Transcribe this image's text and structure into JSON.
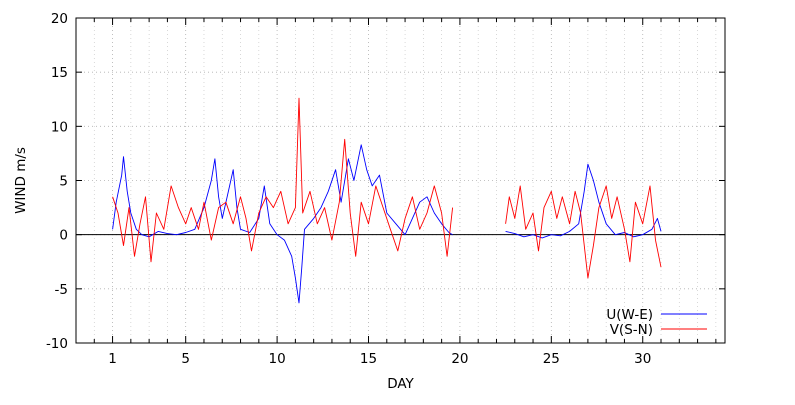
{
  "chart_data": {
    "type": "line",
    "title": "",
    "xlabel": "DAY",
    "ylabel": "WIND m/s",
    "xlim": [
      -1,
      34.5
    ],
    "ylim": [
      -10,
      20
    ],
    "x_ticks": [
      1,
      5,
      10,
      15,
      20,
      25,
      30
    ],
    "x_tick_labels": [
      "1",
      "5",
      "10",
      "15",
      "20",
      "25",
      "30"
    ],
    "x_minor_step": 1,
    "y_ticks": [
      -10,
      -5,
      0,
      5,
      10,
      15,
      20
    ],
    "y_tick_labels": [
      "-10",
      "-5",
      "0",
      "5",
      "10",
      "15",
      "20"
    ],
    "grid": true,
    "zero_line": true,
    "legend_position": "bottom-right",
    "series": [
      {
        "name": "U(W-E)",
        "color": "#0000ff",
        "segments": [
          [
            [
              1.0,
              0.5
            ],
            [
              1.2,
              3.0
            ],
            [
              1.5,
              5.5
            ],
            [
              1.6,
              7.2
            ],
            [
              1.8,
              4.0
            ],
            [
              2.0,
              2.0
            ],
            [
              2.3,
              0.5
            ],
            [
              2.6,
              0.0
            ],
            [
              3.0,
              -0.2
            ],
            [
              3.5,
              0.3
            ],
            [
              4.0,
              0.1
            ],
            [
              4.5,
              0.0
            ],
            [
              5.0,
              0.2
            ],
            [
              5.5,
              0.5
            ],
            [
              6.0,
              2.5
            ],
            [
              6.4,
              5.0
            ],
            [
              6.6,
              7.0
            ],
            [
              6.8,
              3.5
            ],
            [
              7.0,
              1.5
            ],
            [
              7.4,
              4.5
            ],
            [
              7.6,
              6.0
            ],
            [
              7.8,
              2.5
            ],
            [
              8.0,
              0.5
            ],
            [
              8.5,
              0.2
            ],
            [
              9.0,
              1.5
            ],
            [
              9.3,
              4.5
            ],
            [
              9.6,
              1.0
            ],
            [
              10.0,
              0.0
            ],
            [
              10.4,
              -0.5
            ],
            [
              10.8,
              -2.0
            ],
            [
              11.0,
              -4.0
            ],
            [
              11.2,
              -6.3
            ],
            [
              11.35,
              -3.0
            ],
            [
              11.5,
              0.5
            ],
            [
              12.0,
              1.5
            ],
            [
              12.4,
              2.5
            ],
            [
              12.8,
              4.0
            ],
            [
              13.2,
              6.0
            ],
            [
              13.5,
              3.0
            ],
            [
              13.9,
              7.0
            ],
            [
              14.2,
              5.0
            ],
            [
              14.6,
              8.3
            ],
            [
              14.9,
              6.0
            ],
            [
              15.2,
              4.5
            ],
            [
              15.6,
              5.5
            ],
            [
              16.0,
              2.0
            ],
            [
              16.5,
              1.0
            ],
            [
              17.0,
              0.0
            ],
            [
              17.4,
              1.5
            ],
            [
              17.8,
              3.0
            ],
            [
              18.2,
              3.5
            ],
            [
              18.6,
              2.0
            ],
            [
              19.0,
              1.0
            ],
            [
              19.4,
              0.2
            ],
            [
              19.6,
              0.0
            ]
          ],
          [
            [
              22.5,
              0.3
            ],
            [
              23.0,
              0.1
            ],
            [
              23.5,
              -0.2
            ],
            [
              24.0,
              0.0
            ],
            [
              24.5,
              -0.3
            ],
            [
              25.0,
              0.0
            ],
            [
              25.5,
              -0.1
            ],
            [
              26.0,
              0.3
            ],
            [
              26.5,
              1.0
            ],
            [
              26.8,
              4.0
            ],
            [
              27.0,
              6.5
            ],
            [
              27.3,
              5.0
            ],
            [
              27.6,
              3.0
            ],
            [
              28.0,
              1.0
            ],
            [
              28.5,
              0.0
            ],
            [
              29.0,
              0.2
            ],
            [
              29.5,
              -0.2
            ],
            [
              30.0,
              0.0
            ],
            [
              30.5,
              0.5
            ],
            [
              30.8,
              1.5
            ],
            [
              31.0,
              0.3
            ]
          ]
        ]
      },
      {
        "name": "V(S-N)",
        "color": "#ff0000",
        "segments": [
          [
            [
              1.0,
              3.5
            ],
            [
              1.3,
              2.0
            ],
            [
              1.6,
              -1.0
            ],
            [
              1.9,
              2.5
            ],
            [
              2.2,
              -2.0
            ],
            [
              2.5,
              1.0
            ],
            [
              2.8,
              3.5
            ],
            [
              3.1,
              -2.5
            ],
            [
              3.4,
              2.0
            ],
            [
              3.8,
              0.5
            ],
            [
              4.2,
              4.5
            ],
            [
              4.6,
              2.5
            ],
            [
              5.0,
              1.0
            ],
            [
              5.3,
              2.5
            ],
            [
              5.7,
              0.5
            ],
            [
              6.0,
              3.0
            ],
            [
              6.4,
              -0.5
            ],
            [
              6.8,
              2.5
            ],
            [
              7.2,
              3.0
            ],
            [
              7.6,
              1.0
            ],
            [
              8.0,
              3.5
            ],
            [
              8.3,
              1.5
            ],
            [
              8.6,
              -1.5
            ],
            [
              9.0,
              2.0
            ],
            [
              9.4,
              3.5
            ],
            [
              9.8,
              2.5
            ],
            [
              10.2,
              4.0
            ],
            [
              10.6,
              1.0
            ],
            [
              11.0,
              2.5
            ],
            [
              11.2,
              12.6
            ],
            [
              11.4,
              2.0
            ],
            [
              11.8,
              4.0
            ],
            [
              12.2,
              1.0
            ],
            [
              12.6,
              2.5
            ],
            [
              13.0,
              -0.5
            ],
            [
              13.4,
              3.0
            ],
            [
              13.7,
              8.8
            ],
            [
              14.0,
              2.0
            ],
            [
              14.3,
              -2.0
            ],
            [
              14.6,
              3.0
            ],
            [
              15.0,
              1.0
            ],
            [
              15.4,
              4.5
            ],
            [
              15.8,
              2.5
            ],
            [
              16.2,
              0.5
            ],
            [
              16.6,
              -1.5
            ],
            [
              17.0,
              1.5
            ],
            [
              17.4,
              3.5
            ],
            [
              17.8,
              0.5
            ],
            [
              18.2,
              2.0
            ],
            [
              18.6,
              4.5
            ],
            [
              19.0,
              2.0
            ],
            [
              19.3,
              -2.0
            ],
            [
              19.6,
              2.5
            ]
          ],
          [
            [
              22.5,
              1.0
            ],
            [
              22.7,
              3.5
            ],
            [
              23.0,
              1.5
            ],
            [
              23.3,
              4.5
            ],
            [
              23.6,
              0.5
            ],
            [
              24.0,
              2.0
            ],
            [
              24.3,
              -1.5
            ],
            [
              24.6,
              2.5
            ],
            [
              25.0,
              4.0
            ],
            [
              25.3,
              1.5
            ],
            [
              25.6,
              3.5
            ],
            [
              26.0,
              1.0
            ],
            [
              26.3,
              4.0
            ],
            [
              26.6,
              2.0
            ],
            [
              27.0,
              -4.0
            ],
            [
              27.3,
              -1.0
            ],
            [
              27.6,
              2.5
            ],
            [
              28.0,
              4.5
            ],
            [
              28.3,
              1.5
            ],
            [
              28.6,
              3.5
            ],
            [
              29.0,
              0.5
            ],
            [
              29.3,
              -2.5
            ],
            [
              29.6,
              3.0
            ],
            [
              30.0,
              1.0
            ],
            [
              30.4,
              4.5
            ],
            [
              30.7,
              -0.5
            ],
            [
              31.0,
              -3.0
            ]
          ]
        ]
      }
    ]
  }
}
